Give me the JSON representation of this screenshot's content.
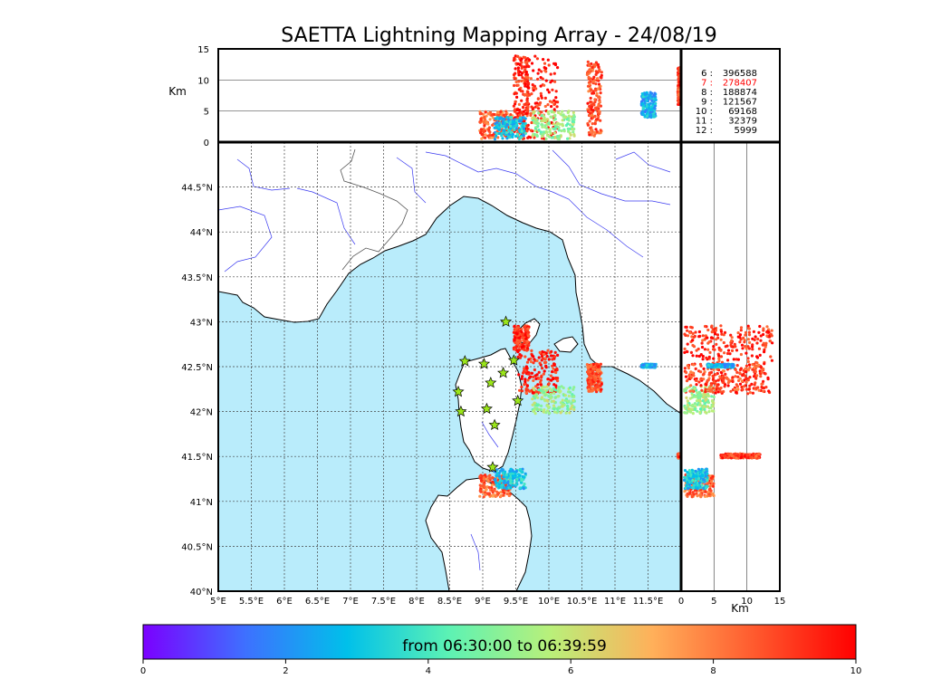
{
  "title": "SAETTA Lightning Mapping Array - 24/08/19",
  "height_unit": "Km",
  "chart_data": {
    "type": "scatter",
    "subtype": "lightning-mapping-map",
    "map": {
      "lon_range": [
        5.0,
        12.0
      ],
      "lat_range": [
        40.0,
        45.0
      ],
      "x_ticks": [
        5,
        5.5,
        6,
        6.5,
        7,
        7.5,
        8,
        8.5,
        9,
        9.5,
        10,
        10.5,
        11,
        11.5
      ],
      "x_tick_labels": [
        "5°E",
        "5.5°E",
        "6°E",
        "6.5°E",
        "7°E",
        "7.5°E",
        "8°E",
        "8.5°E",
        "9°E",
        "9.5°E",
        "10°E",
        "10.5°E",
        "11°E",
        "11.5°E"
      ],
      "y_ticks": [
        40,
        40.5,
        41,
        41.5,
        42,
        42.5,
        43,
        43.5,
        44,
        44.5
      ],
      "y_tick_labels": [
        "40°N",
        "40.5°N",
        "41°N",
        "41.5°N",
        "42°N",
        "42.5°N",
        "43°N",
        "43.5°N",
        "44°N",
        "44.5°N"
      ],
      "grid": "dotted",
      "sea_color": "#b9ecfb",
      "land_color": "#ffffff",
      "river_color": "#3a3af0"
    },
    "altitude_top_panel": {
      "ylabel": "Km",
      "ylim": [
        0,
        15
      ],
      "y_ticks": [
        0,
        5,
        10,
        15
      ],
      "reference_lines_km": [
        5,
        10
      ]
    },
    "altitude_right_panel": {
      "xlabel": "Km",
      "xlim": [
        0,
        15
      ],
      "x_ticks": [
        0,
        5,
        10,
        15
      ],
      "reference_lines_km": [
        5,
        10
      ]
    },
    "station_counts": [
      {
        "stations": "6",
        "count": "396588",
        "color": "#000000"
      },
      {
        "stations": "7",
        "count": "278407",
        "color": "#ff0000"
      },
      {
        "stations": "8",
        "count": "188874",
        "color": "#000000"
      },
      {
        "stations": "9",
        "count": "121567",
        "color": "#000000"
      },
      {
        "stations": "10",
        "count": "69168",
        "color": "#000000"
      },
      {
        "stations": "11",
        "count": "32379",
        "color": "#000000"
      },
      {
        "stations": "12",
        "count": "5999",
        "color": "#000000"
      }
    ],
    "stations": [
      {
        "lon": 9.35,
        "lat": 43.0
      },
      {
        "lon": 8.73,
        "lat": 42.56
      },
      {
        "lon": 9.02,
        "lat": 42.53
      },
      {
        "lon": 9.47,
        "lat": 42.57
      },
      {
        "lon": 9.12,
        "lat": 42.32
      },
      {
        "lon": 9.31,
        "lat": 42.43
      },
      {
        "lon": 8.63,
        "lat": 42.22
      },
      {
        "lon": 9.53,
        "lat": 42.12
      },
      {
        "lon": 8.67,
        "lat": 42.0
      },
      {
        "lon": 9.06,
        "lat": 42.03
      },
      {
        "lon": 9.18,
        "lat": 41.85
      },
      {
        "lon": 9.15,
        "lat": 41.38
      }
    ],
    "source_clusters": [
      {
        "lon": [
          9.47,
          9.7
        ],
        "lat": [
          42.68,
          42.96
        ],
        "alt": [
          0.5,
          14.0
        ],
        "time_min": 9.2
      },
      {
        "lon": [
          9.52,
          10.14
        ],
        "lat": [
          42.2,
          42.68
        ],
        "alt": [
          0.5,
          14.0
        ],
        "time_min": 9.4
      },
      {
        "lon": [
          9.75,
          10.4
        ],
        "lat": [
          41.98,
          42.28
        ],
        "alt": [
          0.5,
          5.0
        ],
        "time_min": 5.2
      },
      {
        "lon": [
          10.58,
          10.8
        ],
        "lat": [
          42.22,
          42.53
        ],
        "alt": [
          1.0,
          13.0
        ],
        "time_min": 8.8
      },
      {
        "lon": [
          8.95,
          9.45
        ],
        "lat": [
          41.05,
          41.3
        ],
        "alt": [
          0.5,
          5.0
        ],
        "time_min": 8.4
      },
      {
        "lon": [
          9.18,
          9.65
        ],
        "lat": [
          41.14,
          41.36
        ],
        "alt": [
          0.5,
          4.0
        ],
        "time_min": 3.0
      },
      {
        "lon": [
          11.4,
          11.62
        ],
        "lat": [
          42.49,
          42.53
        ],
        "alt": [
          4.0,
          8.0
        ],
        "time_min": 2.6
      },
      {
        "lon": [
          11.95,
          12.0
        ],
        "lat": [
          41.48,
          41.53
        ],
        "alt": [
          6.0,
          12.0
        ],
        "time_min": 9.0
      }
    ],
    "colorbar": {
      "label": "from 06:30:00 to 06:39:59",
      "range": [
        0,
        10
      ],
      "ticks": [
        "0",
        "2",
        "4",
        "6",
        "8",
        "10"
      ],
      "colormap": [
        "#7b00ff",
        "#3e70ff",
        "#00c0ea",
        "#5cf2b4",
        "#b9f07a",
        "#ffb05a",
        "#ff5a2e",
        "#ff0000"
      ]
    }
  }
}
